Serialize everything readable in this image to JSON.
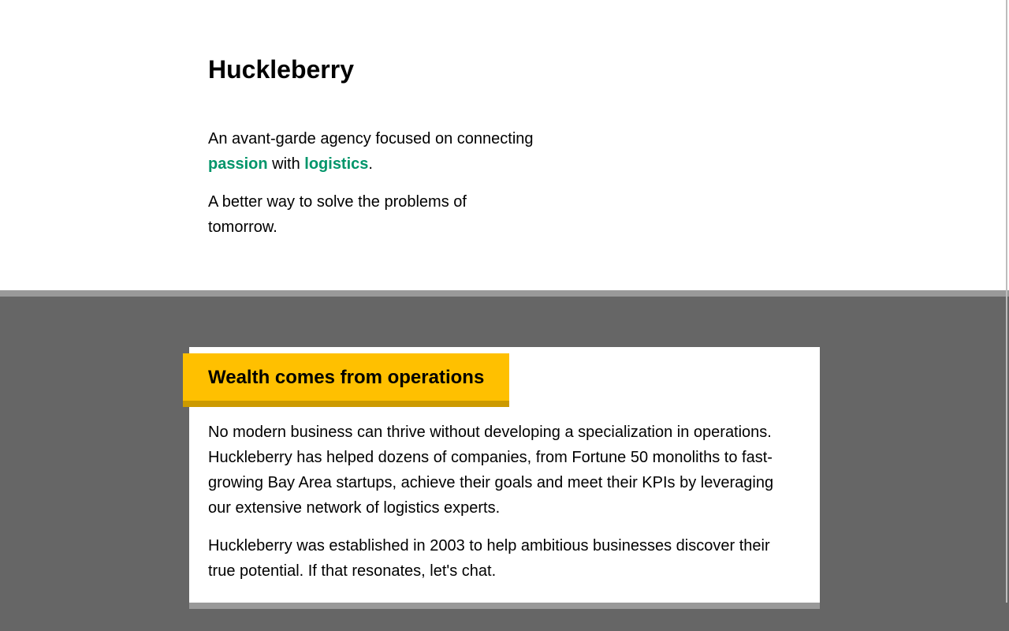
{
  "hero": {
    "title": "Huckleberry",
    "tagline_prefix": "An avant-garde agency focused on connecting",
    "tagline_highlight_1": "passion",
    "tagline_connector": " with ",
    "tagline_highlight_2": "logistics",
    "tagline_suffix": ".",
    "subline": "A better way to solve the problems of tomorrow."
  },
  "about": {
    "heading": "Wealth comes from operations",
    "paragraphs": [
      "No modern business can thrive without developing a specialization in operations. Huckleberry has helped dozens of companies, from Fortune 50 monoliths to fast-growing Bay Area startups, achieve their goals and meet their KPIs by leveraging our extensive network of logistics experts.",
      "Huckleberry was established in 2003 to help ambitious businesses discover their true potential. If that resonates, let's chat."
    ]
  },
  "colors": {
    "highlight": "#00956a",
    "accent_banner": "#ffc000",
    "section_background": "#666666",
    "divider": "#999999"
  }
}
